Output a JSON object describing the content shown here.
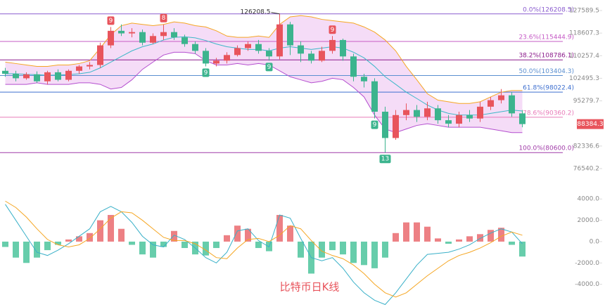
{
  "chart_data": [
    {
      "type": "candlestick",
      "title": "比特币日K线",
      "log_scale": true,
      "ylim": [
        76540.2,
        127589.5
      ],
      "yticks": [
        127589.5,
        118607.3,
        110257.4,
        102495.3,
        95279.7,
        82336.6,
        76540.2
      ],
      "up_color": "#e8545c",
      "down_color": "#3cb48e",
      "open": [
        105000,
        104000,
        102500,
        103800,
        101500,
        104500,
        102000,
        105000,
        106500,
        107000,
        114000,
        119500,
        118500,
        119000,
        115000,
        117500,
        119000,
        117000,
        114500,
        112000,
        107500,
        108500,
        110500,
        113000,
        114500,
        112000,
        110000,
        122000,
        114000,
        111000,
        108500,
        112000,
        116000,
        110000,
        103000,
        101500,
        92000,
        84500,
        91000,
        92500,
        90500,
        93000,
        89500,
        88500,
        91000,
        90000,
        93500,
        95500,
        97000,
        91500
      ],
      "high": [
        106000,
        105000,
        104500,
        104800,
        105000,
        105500,
        105500,
        107000,
        108000,
        115000,
        121000,
        122000,
        120500,
        120000,
        118500,
        122000,
        120500,
        118000,
        115500,
        113000,
        109500,
        111500,
        114000,
        115500,
        116000,
        113000,
        126208.5,
        123000,
        115500,
        112000,
        113500,
        117500,
        116500,
        111000,
        104000,
        102500,
        93500,
        92500,
        94500,
        94000,
        95000,
        94000,
        91000,
        92000,
        92500,
        95000,
        96500,
        99000,
        98000,
        92500
      ],
      "low": [
        103000,
        101500,
        102000,
        101000,
        100500,
        101500,
        101500,
        104000,
        105500,
        106000,
        113000,
        117500,
        117000,
        114000,
        114500,
        116000,
        116000,
        113500,
        111000,
        106500,
        106500,
        107500,
        110000,
        112000,
        111000,
        108500,
        109000,
        110500,
        108000,
        107500,
        108000,
        111000,
        108500,
        101500,
        99500,
        90000,
        80600,
        84000,
        89500,
        89000,
        89500,
        88500,
        87500,
        87500,
        89000,
        89000,
        92500,
        94500,
        90500,
        87500
      ],
      "close": [
        104000,
        102500,
        103800,
        101500,
        104500,
        102000,
        105000,
        106500,
        107000,
        114000,
        119500,
        118500,
        119000,
        115000,
        117500,
        119000,
        117000,
        114500,
        112000,
        107500,
        108500,
        110500,
        113000,
        114500,
        112000,
        110000,
        122000,
        114000,
        111000,
        108500,
        112000,
        116000,
        110000,
        103000,
        101500,
        92000,
        84500,
        91000,
        92500,
        90500,
        93000,
        89500,
        88500,
        91000,
        90000,
        93500,
        95500,
        97000,
        91500,
        88384.3
      ],
      "bands": [
        {
          "color": "#f5a623",
          "values": [
            108000,
            107500,
            107000,
            106500,
            106500,
            107000,
            107000,
            107500,
            108500,
            113000,
            118000,
            121500,
            122500,
            122000,
            121500,
            122000,
            123000,
            122500,
            121500,
            121000,
            119500,
            117500,
            117000,
            117000,
            117500,
            117000,
            122000,
            125000,
            125500,
            125000,
            124000,
            123500,
            123000,
            122500,
            121000,
            119000,
            116000,
            112000,
            106500,
            102000,
            97500,
            95500,
            95000,
            94500,
            94500,
            95000,
            96500,
            98000,
            98500,
            98500
          ]
        },
        {
          "color": "#3db8c8",
          "values": [
            104000,
            104000,
            103800,
            103700,
            103500,
            103600,
            103700,
            104000,
            104500,
            106000,
            108000,
            110000,
            112000,
            113500,
            114500,
            116000,
            117000,
            117200,
            116800,
            115800,
            114500,
            113500,
            113000,
            112500,
            112500,
            112000,
            113000,
            113500,
            113000,
            112500,
            113000,
            113500,
            113000,
            111500,
            109500,
            106500,
            103000,
            100500,
            98000,
            96000,
            94000,
            92500,
            91500,
            91000,
            91000,
            91000,
            91500,
            92000,
            92500,
            92200
          ]
        },
        {
          "color": "#b44fcf",
          "values": [
            100500,
            100500,
            100500,
            101000,
            100500,
            100500,
            100500,
            101000,
            101000,
            100500,
            99000,
            99500,
            102000,
            105500,
            108000,
            110500,
            111500,
            111500,
            111000,
            108500,
            107000,
            107000,
            107500,
            107000,
            107500,
            107000,
            105000,
            103000,
            102000,
            101000,
            101500,
            102500,
            102000,
            99500,
            96500,
            91000,
            87000,
            86000,
            87000,
            88000,
            88500,
            88000,
            87500,
            87500,
            87500,
            87500,
            87000,
            86500,
            86000,
            86000
          ]
        }
      ],
      "band_fill": "#f5dcf7",
      "levels": [
        {
          "value": 126208.5,
          "label": "0.0%(126208.5)",
          "color": "#8a5ccf"
        },
        {
          "value": 115444.9,
          "label": "23.6%(115444.9)",
          "color": "#c65bc6"
        },
        {
          "value": 108786.1,
          "label": "38.2%(108786.1)",
          "color": "#8b1a8b"
        },
        {
          "value": 103404.3,
          "label": "50.0%(103404.3)",
          "color": "#5b8fd0"
        },
        {
          "value": 98022.4,
          "label": "61.8%(98022.4)",
          "color": "#3d6fcf"
        },
        {
          "value": 90360.2,
          "label": "78.6%(90360.2)",
          "color": "#e87ab8"
        },
        {
          "value": 80600.0,
          "label": "100.0%(80600.0)",
          "color": "#a03ca8"
        }
      ],
      "markers_above": [
        null,
        null,
        null,
        null,
        null,
        null,
        null,
        null,
        null,
        null,
        "9",
        null,
        null,
        null,
        null,
        "8",
        null,
        null,
        null,
        null,
        null,
        null,
        null,
        null,
        null,
        null,
        null,
        null,
        null,
        null,
        null,
        "9",
        null,
        null,
        null,
        null,
        null,
        null,
        null,
        null,
        null,
        null,
        null,
        null,
        null,
        null,
        null,
        null,
        null,
        null
      ],
      "markers_below": [
        null,
        null,
        null,
        null,
        null,
        null,
        null,
        null,
        null,
        null,
        null,
        null,
        null,
        null,
        null,
        null,
        null,
        null,
        null,
        "9",
        null,
        null,
        null,
        null,
        null,
        "9",
        null,
        null,
        null,
        null,
        null,
        null,
        null,
        null,
        null,
        "9",
        "13",
        null,
        null,
        null,
        null,
        null,
        null,
        null,
        null,
        null,
        null,
        null,
        null,
        null
      ]
    },
    {
      "type": "macd",
      "ylim": [
        -6000,
        5200
      ],
      "yticks": [
        {
          "value": 4000,
          "label": "4000.0"
        },
        {
          "value": 2000,
          "label": "2000.0"
        },
        {
          "value": 0,
          "label": "0.0"
        },
        {
          "value": -2000,
          "label": "-2000.0"
        },
        {
          "value": -4000,
          "label": "-4000.0"
        }
      ],
      "up_color": "#ea6a6f",
      "down_color": "#4cc49c",
      "values": [
        -500,
        -1500,
        -2000,
        -1500,
        -800,
        -300,
        200,
        500,
        800,
        2000,
        2500,
        1200,
        -300,
        -1200,
        -1500,
        -500,
        1000,
        -600,
        -1200,
        -1300,
        -600,
        600,
        1500,
        1200,
        -600,
        -900,
        2500,
        1500,
        -1500,
        -3000,
        -1500,
        -800,
        -1200,
        -2000,
        -2200,
        -2500,
        -1500,
        800,
        1800,
        1800,
        1400,
        300,
        -200,
        200,
        500,
        700,
        1100,
        1300,
        -300,
        -1400
      ],
      "series": [
        {
          "color": "#39b0c8",
          "values": [
            3500,
            2000,
            500,
            -1000,
            -1300,
            -800,
            -200,
            500,
            1200,
            2800,
            3300,
            2800,
            1800,
            500,
            -300,
            -500,
            600,
            200,
            -600,
            -1500,
            -2000,
            -1000,
            1000,
            1200,
            100,
            -500,
            2500,
            2200,
            300,
            -1500,
            -1800,
            -1500,
            -2500,
            -3800,
            -4800,
            -5500,
            -5900,
            -4800,
            -3500,
            -2200,
            -1200,
            -1100,
            -1000,
            -700,
            -300,
            300,
            800,
            1200,
            900,
            -200
          ]
        },
        {
          "color": "#f5a623",
          "values": [
            3800,
            3200,
            2300,
            1200,
            200,
            -300,
            -500,
            -300,
            300,
            1200,
            2200,
            2800,
            2700,
            2000,
            1200,
            400,
            100,
            100,
            -200,
            -800,
            -1500,
            -1600,
            -600,
            200,
            300,
            0,
            600,
            1500,
            1200,
            100,
            -900,
            -1300,
            -1600,
            -2200,
            -3000,
            -4000,
            -4800,
            -5200,
            -4800,
            -4000,
            -3200,
            -2500,
            -1800,
            -1300,
            -1000,
            -600,
            -100,
            500,
            900,
            600
          ]
        }
      ]
    }
  ]
}
